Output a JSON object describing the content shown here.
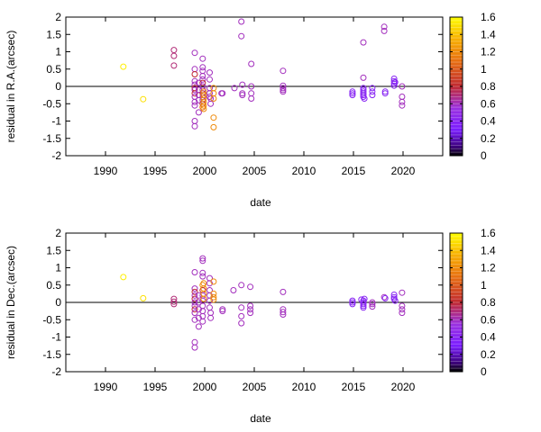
{
  "colorbar": {
    "range": [
      0,
      1.6
    ],
    "ticks": [
      "0",
      "0.2",
      "0.4",
      "0.6",
      "0.8",
      "1",
      "1.2",
      "1.4",
      "1.6"
    ],
    "stops": [
      {
        "v": 0.0,
        "color": "#000000"
      },
      {
        "v": 0.1,
        "color": "#3a0078"
      },
      {
        "v": 0.3,
        "color": "#7a1cff"
      },
      {
        "v": 0.55,
        "color": "#9a30e0"
      },
      {
        "v": 0.8,
        "color": "#c02830"
      },
      {
        "v": 1.1,
        "color": "#e87010"
      },
      {
        "v": 1.35,
        "color": "#f8b000"
      },
      {
        "v": 1.6,
        "color": "#ffff00"
      }
    ]
  },
  "chart_data": [
    {
      "type": "scatter",
      "title": "",
      "xlabel": "date",
      "ylabel": "residual in R.A.(arcsec)",
      "xlim": [
        1986,
        2024
      ],
      "ylim": [
        -2,
        2
      ],
      "x_ticks": [
        "1990",
        "1995",
        "2000",
        "2005",
        "2010",
        "2015",
        "2020"
      ],
      "y_ticks": [
        "-2",
        "-1.5",
        "-1",
        "-0.5",
        "0",
        "0.5",
        "1",
        "1.5",
        "2"
      ],
      "zero_line": true,
      "color_by": "colorbar value",
      "points": [
        {
          "x": 1991.8,
          "y": 0.57,
          "c": 1.55
        },
        {
          "x": 1993.8,
          "y": -0.37,
          "c": 1.5
        },
        {
          "x": 1996.9,
          "y": 1.05,
          "c": 0.7
        },
        {
          "x": 1996.9,
          "y": 0.88,
          "c": 0.7
        },
        {
          "x": 1996.9,
          "y": 0.6,
          "c": 0.7
        },
        {
          "x": 1999.0,
          "y": 0.97,
          "c": 0.6
        },
        {
          "x": 1999.0,
          "y": 0.5,
          "c": 0.6
        },
        {
          "x": 1999.0,
          "y": 0.35,
          "c": 0.8
        },
        {
          "x": 1999.0,
          "y": 0.15,
          "c": 0.6
        },
        {
          "x": 1999.0,
          "y": 0.05,
          "c": 0.6
        },
        {
          "x": 1999.0,
          "y": -0.05,
          "c": 0.8
        },
        {
          "x": 1999.0,
          "y": -0.1,
          "c": 0.6
        },
        {
          "x": 1999.0,
          "y": -0.2,
          "c": 0.8
        },
        {
          "x": 1999.0,
          "y": -0.3,
          "c": 0.6
        },
        {
          "x": 1999.0,
          "y": -0.45,
          "c": 0.6
        },
        {
          "x": 1999.0,
          "y": -0.55,
          "c": 0.6
        },
        {
          "x": 1999.0,
          "y": -1.0,
          "c": 0.6
        },
        {
          "x": 1999.0,
          "y": -1.15,
          "c": 0.6
        },
        {
          "x": 1999.4,
          "y": 0.1,
          "c": 0.6
        },
        {
          "x": 1999.4,
          "y": -0.1,
          "c": 0.6
        },
        {
          "x": 1999.4,
          "y": -0.25,
          "c": 0.6
        },
        {
          "x": 1999.4,
          "y": -0.4,
          "c": 0.6
        },
        {
          "x": 1999.4,
          "y": -0.75,
          "c": 0.6
        },
        {
          "x": 1999.8,
          "y": 0.8,
          "c": 0.6
        },
        {
          "x": 1999.8,
          "y": 0.55,
          "c": 0.6
        },
        {
          "x": 1999.8,
          "y": 0.45,
          "c": 0.6
        },
        {
          "x": 1999.8,
          "y": 0.3,
          "c": 0.6
        },
        {
          "x": 1999.8,
          "y": 0.2,
          "c": 0.6
        },
        {
          "x": 1999.8,
          "y": 0.1,
          "c": 0.8
        },
        {
          "x": 1999.8,
          "y": 0.0,
          "c": 0.6
        },
        {
          "x": 1999.8,
          "y": -0.1,
          "c": 0.6
        },
        {
          "x": 1999.8,
          "y": -0.2,
          "c": 0.8
        },
        {
          "x": 1999.8,
          "y": -0.3,
          "c": 0.6
        },
        {
          "x": 1999.8,
          "y": -0.4,
          "c": 0.6
        },
        {
          "x": 1999.8,
          "y": -0.5,
          "c": 0.8
        },
        {
          "x": 1999.8,
          "y": -0.6,
          "c": 1.1
        },
        {
          "x": 1999.9,
          "y": -0.15,
          "c": 1.2
        },
        {
          "x": 1999.9,
          "y": -0.25,
          "c": 1.2
        },
        {
          "x": 1999.9,
          "y": -0.35,
          "c": 1.2
        },
        {
          "x": 1999.9,
          "y": -0.45,
          "c": 1.2
        },
        {
          "x": 1999.9,
          "y": -0.55,
          "c": 1.2
        },
        {
          "x": 1999.9,
          "y": -0.65,
          "c": 1.2
        },
        {
          "x": 2000.5,
          "y": 0.4,
          "c": 0.6
        },
        {
          "x": 2000.5,
          "y": 0.2,
          "c": 0.6
        },
        {
          "x": 2000.5,
          "y": -0.05,
          "c": 0.6
        },
        {
          "x": 2000.5,
          "y": -0.2,
          "c": 0.6
        },
        {
          "x": 2000.5,
          "y": -0.3,
          "c": 0.6
        },
        {
          "x": 2000.6,
          "y": -0.35,
          "c": 0.6
        },
        {
          "x": 2000.6,
          "y": -0.5,
          "c": 0.6
        },
        {
          "x": 2000.9,
          "y": -0.05,
          "c": 1.2
        },
        {
          "x": 2000.9,
          "y": -0.2,
          "c": 1.2
        },
        {
          "x": 2000.9,
          "y": -0.35,
          "c": 1.2
        },
        {
          "x": 2000.9,
          "y": -0.9,
          "c": 1.2
        },
        {
          "x": 2000.9,
          "y": -1.18,
          "c": 1.2
        },
        {
          "x": 2001.7,
          "y": -0.2,
          "c": 0.6
        },
        {
          "x": 2001.8,
          "y": -0.2,
          "c": 0.6
        },
        {
          "x": 2003.7,
          "y": 1.87,
          "c": 0.6
        },
        {
          "x": 2003.7,
          "y": 1.45,
          "c": 0.6
        },
        {
          "x": 2003.8,
          "y": 0.05,
          "c": 0.6
        },
        {
          "x": 2003.8,
          "y": -0.2,
          "c": 0.6
        },
        {
          "x": 2003.8,
          "y": -0.25,
          "c": 0.6
        },
        {
          "x": 2003.0,
          "y": -0.05,
          "c": 0.6
        },
        {
          "x": 2004.7,
          "y": 0.65,
          "c": 0.6
        },
        {
          "x": 2004.7,
          "y": 0.0,
          "c": 0.6
        },
        {
          "x": 2004.7,
          "y": -0.2,
          "c": 0.6
        },
        {
          "x": 2004.7,
          "y": -0.35,
          "c": 0.6
        },
        {
          "x": 2007.9,
          "y": 0.45,
          "c": 0.6
        },
        {
          "x": 2007.9,
          "y": 0.02,
          "c": 0.6
        },
        {
          "x": 2007.9,
          "y": -0.05,
          "c": 0.6
        },
        {
          "x": 2007.9,
          "y": -0.1,
          "c": 0.6
        },
        {
          "x": 2007.9,
          "y": -0.15,
          "c": 0.6
        },
        {
          "x": 2014.9,
          "y": -0.15,
          "c": 0.4
        },
        {
          "x": 2014.9,
          "y": -0.2,
          "c": 0.4
        },
        {
          "x": 2014.9,
          "y": -0.25,
          "c": 0.4
        },
        {
          "x": 2016.0,
          "y": 1.27,
          "c": 0.6
        },
        {
          "x": 2016.0,
          "y": 0.25,
          "c": 0.6
        },
        {
          "x": 2016.0,
          "y": -0.05,
          "c": 0.4
        },
        {
          "x": 2016.0,
          "y": -0.1,
          "c": 0.4
        },
        {
          "x": 2016.0,
          "y": -0.15,
          "c": 0.4
        },
        {
          "x": 2016.0,
          "y": -0.2,
          "c": 0.4
        },
        {
          "x": 2016.0,
          "y": -0.25,
          "c": 0.4
        },
        {
          "x": 2016.0,
          "y": -0.3,
          "c": 0.4
        },
        {
          "x": 2016.1,
          "y": -0.35,
          "c": 0.4
        },
        {
          "x": 2016.9,
          "y": -0.05,
          "c": 0.4
        },
        {
          "x": 2016.9,
          "y": -0.15,
          "c": 0.4
        },
        {
          "x": 2016.9,
          "y": -0.25,
          "c": 0.4
        },
        {
          "x": 2018.1,
          "y": 1.72,
          "c": 0.6
        },
        {
          "x": 2018.1,
          "y": 1.6,
          "c": 0.6
        },
        {
          "x": 2018.2,
          "y": -0.15,
          "c": 0.4
        },
        {
          "x": 2018.2,
          "y": -0.2,
          "c": 0.4
        },
        {
          "x": 2019.1,
          "y": 0.22,
          "c": 0.4
        },
        {
          "x": 2019.1,
          "y": 0.15,
          "c": 0.4
        },
        {
          "x": 2019.1,
          "y": 0.08,
          "c": 0.4
        },
        {
          "x": 2019.1,
          "y": 0.02,
          "c": 0.4
        },
        {
          "x": 2019.2,
          "y": 0.12,
          "c": 0.4
        },
        {
          "x": 2019.9,
          "y": 0.0,
          "c": 0.6
        },
        {
          "x": 2019.9,
          "y": -0.3,
          "c": 0.6
        },
        {
          "x": 2019.9,
          "y": -0.45,
          "c": 0.6
        },
        {
          "x": 2019.9,
          "y": -0.55,
          "c": 0.6
        }
      ]
    },
    {
      "type": "scatter",
      "title": "",
      "xlabel": "date",
      "ylabel": "residual in Dec.(arcsec)",
      "xlim": [
        1986,
        2024
      ],
      "ylim": [
        -2,
        2
      ],
      "x_ticks": [
        "1990",
        "1995",
        "2000",
        "2005",
        "2010",
        "2015",
        "2020"
      ],
      "y_ticks": [
        "-2",
        "-1.5",
        "-1",
        "-0.5",
        "0",
        "0.5",
        "1",
        "1.5",
        "2"
      ],
      "zero_line": true,
      "color_by": "colorbar value",
      "points": [
        {
          "x": 1991.8,
          "y": 0.73,
          "c": 1.55
        },
        {
          "x": 1993.8,
          "y": 0.12,
          "c": 1.5
        },
        {
          "x": 1996.9,
          "y": 0.1,
          "c": 0.7
        },
        {
          "x": 1996.9,
          "y": 0.02,
          "c": 0.7
        },
        {
          "x": 1996.9,
          "y": -0.05,
          "c": 0.7
        },
        {
          "x": 1999.0,
          "y": 0.87,
          "c": 0.6
        },
        {
          "x": 1999.0,
          "y": 0.4,
          "c": 0.6
        },
        {
          "x": 1999.0,
          "y": 0.3,
          "c": 0.8
        },
        {
          "x": 1999.0,
          "y": 0.2,
          "c": 0.6
        },
        {
          "x": 1999.0,
          "y": 0.1,
          "c": 0.8
        },
        {
          "x": 1999.0,
          "y": 0.0,
          "c": 0.6
        },
        {
          "x": 1999.0,
          "y": -0.1,
          "c": 0.6
        },
        {
          "x": 1999.0,
          "y": -0.2,
          "c": 0.8
        },
        {
          "x": 1999.0,
          "y": -0.3,
          "c": 0.6
        },
        {
          "x": 1999.0,
          "y": -0.5,
          "c": 0.6
        },
        {
          "x": 1999.0,
          "y": -1.15,
          "c": 0.6
        },
        {
          "x": 1999.0,
          "y": -1.3,
          "c": 0.6
        },
        {
          "x": 1999.4,
          "y": 0.2,
          "c": 0.6
        },
        {
          "x": 1999.4,
          "y": 0.0,
          "c": 0.6
        },
        {
          "x": 1999.4,
          "y": -0.2,
          "c": 0.6
        },
        {
          "x": 1999.4,
          "y": -0.45,
          "c": 0.6
        },
        {
          "x": 1999.4,
          "y": -0.7,
          "c": 0.6
        },
        {
          "x": 1999.8,
          "y": 1.27,
          "c": 0.6
        },
        {
          "x": 1999.8,
          "y": 1.2,
          "c": 0.6
        },
        {
          "x": 1999.8,
          "y": 0.85,
          "c": 0.6
        },
        {
          "x": 1999.8,
          "y": 0.75,
          "c": 0.6
        },
        {
          "x": 1999.8,
          "y": 0.5,
          "c": 1.2
        },
        {
          "x": 1999.8,
          "y": 0.35,
          "c": 0.8
        },
        {
          "x": 1999.8,
          "y": 0.2,
          "c": 0.6
        },
        {
          "x": 1999.8,
          "y": 0.05,
          "c": 0.6
        },
        {
          "x": 1999.8,
          "y": -0.1,
          "c": 0.6
        },
        {
          "x": 1999.8,
          "y": -0.25,
          "c": 0.6
        },
        {
          "x": 1999.8,
          "y": -0.4,
          "c": 0.6
        },
        {
          "x": 1999.8,
          "y": -0.55,
          "c": 0.6
        },
        {
          "x": 1999.9,
          "y": 0.55,
          "c": 1.2
        },
        {
          "x": 1999.9,
          "y": 0.4,
          "c": 1.2
        },
        {
          "x": 1999.9,
          "y": 0.25,
          "c": 1.2
        },
        {
          "x": 1999.9,
          "y": 0.1,
          "c": 1.2
        },
        {
          "x": 2000.5,
          "y": 0.7,
          "c": 0.6
        },
        {
          "x": 2000.5,
          "y": 0.55,
          "c": 0.6
        },
        {
          "x": 2000.5,
          "y": 0.35,
          "c": 0.6
        },
        {
          "x": 2000.5,
          "y": 0.2,
          "c": 0.6
        },
        {
          "x": 2000.5,
          "y": 0.05,
          "c": 0.6
        },
        {
          "x": 2000.5,
          "y": -0.15,
          "c": 0.6
        },
        {
          "x": 2000.6,
          "y": -0.3,
          "c": 0.6
        },
        {
          "x": 2000.6,
          "y": -0.45,
          "c": 0.6
        },
        {
          "x": 2000.9,
          "y": 0.6,
          "c": 1.2
        },
        {
          "x": 2000.9,
          "y": 0.25,
          "c": 1.2
        },
        {
          "x": 2000.9,
          "y": 0.15,
          "c": 1.2
        },
        {
          "x": 2000.9,
          "y": 0.08,
          "c": 1.2
        },
        {
          "x": 2001.8,
          "y": -0.2,
          "c": 0.6
        },
        {
          "x": 2001.8,
          "y": -0.25,
          "c": 0.6
        },
        {
          "x": 2002.9,
          "y": 0.35,
          "c": 0.6
        },
        {
          "x": 2003.7,
          "y": 0.5,
          "c": 0.6
        },
        {
          "x": 2003.7,
          "y": -0.15,
          "c": 0.6
        },
        {
          "x": 2003.7,
          "y": -0.4,
          "c": 0.6
        },
        {
          "x": 2003.7,
          "y": -0.6,
          "c": 0.6
        },
        {
          "x": 2004.6,
          "y": 0.45,
          "c": 0.6
        },
        {
          "x": 2004.6,
          "y": -0.1,
          "c": 0.6
        },
        {
          "x": 2004.6,
          "y": -0.2,
          "c": 0.6
        },
        {
          "x": 2004.6,
          "y": -0.3,
          "c": 0.6
        },
        {
          "x": 2007.9,
          "y": 0.3,
          "c": 0.6
        },
        {
          "x": 2007.9,
          "y": -0.2,
          "c": 0.6
        },
        {
          "x": 2007.9,
          "y": -0.28,
          "c": 0.6
        },
        {
          "x": 2007.9,
          "y": -0.35,
          "c": 0.6
        },
        {
          "x": 2014.9,
          "y": 0.05,
          "c": 0.4
        },
        {
          "x": 2014.9,
          "y": 0.0,
          "c": 0.4
        },
        {
          "x": 2014.9,
          "y": -0.05,
          "c": 0.4
        },
        {
          "x": 2015.8,
          "y": 0.08,
          "c": 0.4
        },
        {
          "x": 2016.0,
          "y": 0.05,
          "c": 0.4
        },
        {
          "x": 2016.0,
          "y": 0.0,
          "c": 0.4
        },
        {
          "x": 2016.0,
          "y": -0.05,
          "c": 0.4
        },
        {
          "x": 2016.0,
          "y": -0.1,
          "c": 0.4
        },
        {
          "x": 2016.0,
          "y": -0.15,
          "c": 0.4
        },
        {
          "x": 2016.1,
          "y": 0.1,
          "c": 0.4
        },
        {
          "x": 2016.9,
          "y": 0.0,
          "c": 0.6
        },
        {
          "x": 2016.9,
          "y": -0.05,
          "c": 0.6
        },
        {
          "x": 2016.9,
          "y": -0.12,
          "c": 0.6
        },
        {
          "x": 2018.1,
          "y": 0.15,
          "c": 0.6
        },
        {
          "x": 2018.2,
          "y": 0.12,
          "c": 0.4
        },
        {
          "x": 2019.1,
          "y": 0.22,
          "c": 0.4
        },
        {
          "x": 2019.1,
          "y": 0.15,
          "c": 0.4
        },
        {
          "x": 2019.1,
          "y": 0.1,
          "c": 0.4
        },
        {
          "x": 2019.2,
          "y": 0.05,
          "c": 0.4
        },
        {
          "x": 2019.9,
          "y": 0.28,
          "c": 0.6
        },
        {
          "x": 2019.9,
          "y": -0.1,
          "c": 0.6
        },
        {
          "x": 2019.9,
          "y": -0.2,
          "c": 0.6
        },
        {
          "x": 2019.9,
          "y": -0.3,
          "c": 0.6
        }
      ]
    }
  ]
}
